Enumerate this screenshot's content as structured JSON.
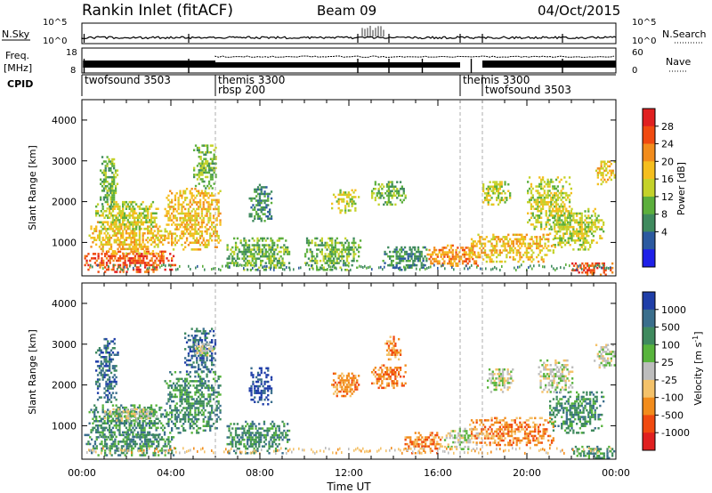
{
  "header": {
    "station": "Rankin Inlet (fitACF)",
    "beam": "Beam 09",
    "date": "04/Oct/2015"
  },
  "summary_panels": {
    "nsky_label": "N.Sky",
    "nsearch_label": "N.Search",
    "freq_label": "Freq.",
    "freq_unit": "[MHz]",
    "nave_label": "Nave",
    "cpid_label": "CPID",
    "nsky_ticks": [
      "10^5",
      "10^0"
    ],
    "nsearch_ticks": [
      "10^5",
      "10^0"
    ],
    "freq_ticks": [
      "18",
      "8"
    ],
    "nave_ticks": [
      "60",
      "0"
    ]
  },
  "cpid_segments": [
    {
      "label": "twofsound 3503",
      "start_hour": 0.0
    },
    {
      "label": "themis 3300",
      "start_hour": 6.0
    },
    {
      "label": "rbsp 200",
      "start_hour": 6.0
    },
    {
      "label": "themis 3300",
      "start_hour": 17.0
    },
    {
      "label": "twofsound 3503",
      "start_hour": 18.0
    }
  ],
  "chart_data": [
    {
      "type": "heatmap",
      "name": "power",
      "xlabel": "Time UT",
      "ylabel": "Slant Range [km]",
      "xlim": [
        0,
        24
      ],
      "ylim": [
        180,
        4500
      ],
      "x_ticks": [
        "00:00",
        "04:00",
        "08:00",
        "12:00",
        "16:00",
        "20:00",
        "00:00"
      ],
      "y_ticks": [
        1000,
        2000,
        3000,
        4000
      ],
      "colorbar_label": "Power [dB]",
      "colorbar_ticks": [
        "28",
        "24",
        "20",
        "16",
        "12",
        "8",
        "4"
      ],
      "colorbar_colors": [
        "#e02020",
        "#f04a10",
        "#f28c1c",
        "#f5be1e",
        "#c4d22a",
        "#5caf3c",
        "#3f8a5e",
        "#2c5aa0",
        "#1f20e8"
      ],
      "blobs": [
        {
          "t0": 0.1,
          "t1": 4.2,
          "r0": 250,
          "r1": 800,
          "v": 26
        },
        {
          "t0": 0.3,
          "t1": 3.8,
          "r0": 700,
          "r1": 1500,
          "v": 20
        },
        {
          "t0": 0.6,
          "t1": 3.4,
          "r0": 1300,
          "r1": 2000,
          "v": 14
        },
        {
          "t0": 0.8,
          "t1": 1.6,
          "r0": 1800,
          "r1": 3100,
          "v": 12
        },
        {
          "t0": 3.7,
          "t1": 6.2,
          "r0": 800,
          "r1": 2300,
          "v": 19
        },
        {
          "t0": 5.0,
          "t1": 6.0,
          "r0": 2300,
          "r1": 3400,
          "v": 12
        },
        {
          "t0": 6.5,
          "t1": 9.3,
          "r0": 300,
          "r1": 1100,
          "v": 10
        },
        {
          "t0": 7.5,
          "t1": 8.5,
          "r0": 1500,
          "r1": 2400,
          "v": 6
        },
        {
          "t0": 10.0,
          "t1": 12.5,
          "r0": 300,
          "r1": 1100,
          "v": 9
        },
        {
          "t0": 11.2,
          "t1": 12.4,
          "r0": 1700,
          "r1": 2300,
          "v": 14
        },
        {
          "t0": 13.0,
          "t1": 14.5,
          "r0": 1900,
          "r1": 2500,
          "v": 12
        },
        {
          "t0": 13.5,
          "t1": 15.5,
          "r0": 300,
          "r1": 900,
          "v": 8
        },
        {
          "t0": 15.5,
          "t1": 17.8,
          "r0": 400,
          "r1": 900,
          "v": 24
        },
        {
          "t0": 17.4,
          "t1": 21.2,
          "r0": 500,
          "r1": 1200,
          "v": 20
        },
        {
          "t0": 18.0,
          "t1": 19.2,
          "r0": 1900,
          "r1": 2500,
          "v": 15
        },
        {
          "t0": 21.0,
          "t1": 23.4,
          "r0": 800,
          "r1": 1800,
          "v": 13
        },
        {
          "t0": 22.0,
          "t1": 23.9,
          "r0": 180,
          "r1": 500,
          "v": 26
        },
        {
          "t0": 20.0,
          "t1": 22.0,
          "r0": 1300,
          "r1": 2600,
          "v": 13
        },
        {
          "t0": 23.0,
          "t1": 23.9,
          "r0": 2400,
          "r1": 3000,
          "v": 18
        }
      ]
    },
    {
      "type": "heatmap",
      "name": "velocity",
      "xlabel": "Time UT",
      "ylabel": "Slant Range [km]",
      "xlim": [
        0,
        24
      ],
      "ylim": [
        180,
        4500
      ],
      "x_ticks": [
        "00:00",
        "04:00",
        "08:00",
        "12:00",
        "16:00",
        "20:00",
        "00:00"
      ],
      "y_ticks": [
        1000,
        2000,
        3000,
        4000
      ],
      "colorbar_label": "Velocity [m s",
      "colorbar_unit_sup": "-1",
      "colorbar_unit_end": "]",
      "colorbar_ticks": [
        "1000",
        "500",
        "100",
        "25",
        "-25",
        "-100",
        "-500",
        "-1000"
      ],
      "colorbar_colors": [
        "#1f3ea8",
        "#3a6e8c",
        "#3f8a5e",
        "#58b43c",
        "#bdbdbd",
        "#f4c26a",
        "#f28c1c",
        "#f04a10",
        "#e02020"
      ],
      "blobs": [
        {
          "t0": 0.1,
          "t1": 4.2,
          "r0": 250,
          "r1": 800,
          "v": 2
        },
        {
          "t0": 0.3,
          "t1": 3.8,
          "r0": 700,
          "r1": 1500,
          "v": 2
        },
        {
          "t0": 1.0,
          "t1": 3.4,
          "r0": 1100,
          "r1": 1400,
          "v": 4
        },
        {
          "t0": 0.6,
          "t1": 1.6,
          "r0": 1500,
          "r1": 3100,
          "v": 1
        },
        {
          "t0": 3.7,
          "t1": 6.2,
          "r0": 800,
          "r1": 2300,
          "v": 2
        },
        {
          "t0": 4.6,
          "t1": 6.0,
          "r0": 2300,
          "r1": 3400,
          "v": 1
        },
        {
          "t0": 6.5,
          "t1": 9.3,
          "r0": 300,
          "r1": 1100,
          "v": 2
        },
        {
          "t0": 7.5,
          "t1": 8.5,
          "r0": 1500,
          "r1": 2400,
          "v": 0
        },
        {
          "t0": 11.2,
          "t1": 12.4,
          "r0": 1700,
          "r1": 2300,
          "v": 6
        },
        {
          "t0": 13.0,
          "t1": 14.5,
          "r0": 1900,
          "r1": 2500,
          "v": 6
        },
        {
          "t0": 13.6,
          "t1": 14.3,
          "r0": 2600,
          "r1": 3200,
          "v": 6
        },
        {
          "t0": 14.5,
          "t1": 16.2,
          "r0": 300,
          "r1": 800,
          "v": 6
        },
        {
          "t0": 16.2,
          "t1": 17.8,
          "r0": 400,
          "r1": 900,
          "v": 4
        },
        {
          "t0": 17.4,
          "t1": 21.2,
          "r0": 500,
          "r1": 1200,
          "v": 6
        },
        {
          "t0": 18.2,
          "t1": 19.4,
          "r0": 1800,
          "r1": 2400,
          "v": 4
        },
        {
          "t0": 21.0,
          "t1": 23.4,
          "r0": 800,
          "r1": 1800,
          "v": 2
        },
        {
          "t0": 22.0,
          "t1": 23.9,
          "r0": 180,
          "r1": 500,
          "v": 2
        },
        {
          "t0": 20.5,
          "t1": 22.0,
          "r0": 1800,
          "r1": 2600,
          "v": 4
        },
        {
          "t0": 23.0,
          "t1": 23.9,
          "r0": 2400,
          "r1": 3000,
          "v": 4
        },
        {
          "t0": 5.0,
          "t1": 6.0,
          "r0": 2700,
          "r1": 3000,
          "v": 4
        }
      ]
    }
  ]
}
